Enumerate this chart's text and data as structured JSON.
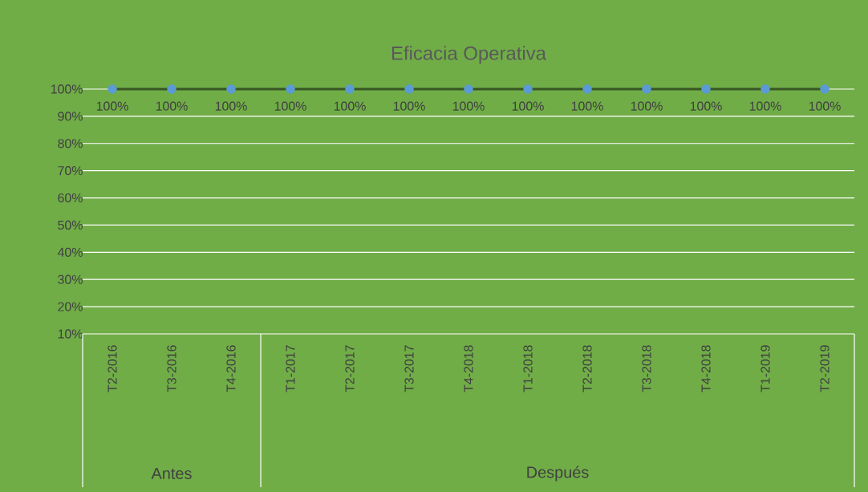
{
  "chart_data": {
    "type": "line",
    "title": "Eficacia Operativa",
    "categories": [
      "T2-2016",
      "T3-2016",
      "T4-2016",
      "T1-2017",
      "T2-2017",
      "T3-2017",
      "T4-2018",
      "T1-2018",
      "T2-2018",
      "T3-2018",
      "T4-2018",
      "T1-2019",
      "T2-2019"
    ],
    "series": [
      {
        "color": "#375623",
        "colors": [
          "#5b9bd5",
          "#5b9bd5",
          "#5b9bd5",
          "#5b9bd5",
          "#5b9bd5",
          "#5b9bd5",
          "#5b9bd5",
          "#5b9bd5",
          "#5b9bd5",
          "#5b9bd5",
          "#5b9bd5",
          "#5b9bd5",
          "#5b9bd5"
        ],
        "values": [
          100,
          100,
          100,
          100,
          100,
          100,
          100,
          100,
          100,
          100,
          100,
          100,
          100
        ],
        "value_labels": [
          "100%",
          "100%",
          "100%",
          "100%",
          "100%",
          "100%",
          "100%",
          "100%",
          "100%",
          "100%",
          "100%",
          "100%",
          "100%"
        ]
      }
    ],
    "ylim": [
      10,
      100
    ],
    "yticks": [
      {
        "value": 10,
        "label": "10%"
      },
      {
        "value": 20,
        "label": "20%"
      },
      {
        "value": 30,
        "label": "30%"
      },
      {
        "value": 40,
        "label": "40%"
      },
      {
        "value": 50,
        "label": "50%"
      },
      {
        "value": 60,
        "label": "60%"
      },
      {
        "value": 70,
        "label": "70%"
      },
      {
        "value": 80,
        "label": "80%"
      },
      {
        "value": 90,
        "label": "90%"
      },
      {
        "value": 100,
        "label": "100%"
      }
    ],
    "grid": "y",
    "marker": "circle",
    "line_style": "solid",
    "annotations": [
      "Antes",
      "Después"
    ]
  }
}
